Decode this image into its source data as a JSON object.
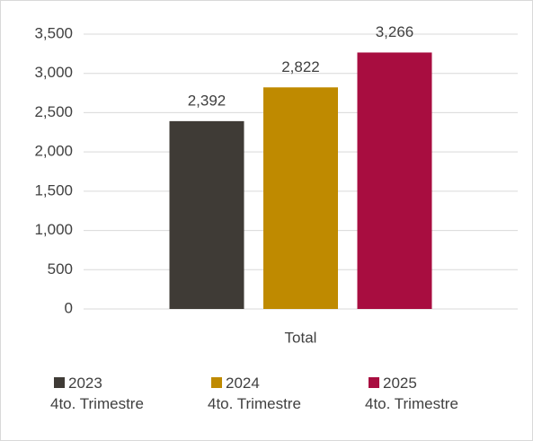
{
  "chart_data": {
    "type": "bar",
    "categories": [
      "Total"
    ],
    "series": [
      {
        "name": "2023\n4to. Trimestre",
        "color": "#3f3b36",
        "values": [
          2392
        ],
        "value_labels": [
          "2,392"
        ]
      },
      {
        "name": "2024\n4to. Trimestre",
        "color": "#bf8a00",
        "values": [
          2822
        ],
        "value_labels": [
          "2,822"
        ]
      },
      {
        "name": "2025\n4to. Trimestre",
        "color": "#a80d40",
        "values": [
          3266
        ],
        "value_labels": [
          "3,266"
        ]
      }
    ],
    "ylim": [
      0,
      3500
    ],
    "yticks": [
      0,
      500,
      {
        "value": 1000,
        "label": "1,000"
      },
      {
        "value": 1500,
        "label": "1,500"
      },
      {
        "value": 2000,
        "label": "2,000"
      },
      {
        "value": 2500,
        "label": "2,500"
      },
      {
        "value": 3000,
        "label": "3,000"
      },
      {
        "value": 3500,
        "label": "3,500"
      }
    ],
    "grid": true,
    "legend": "bottom"
  }
}
